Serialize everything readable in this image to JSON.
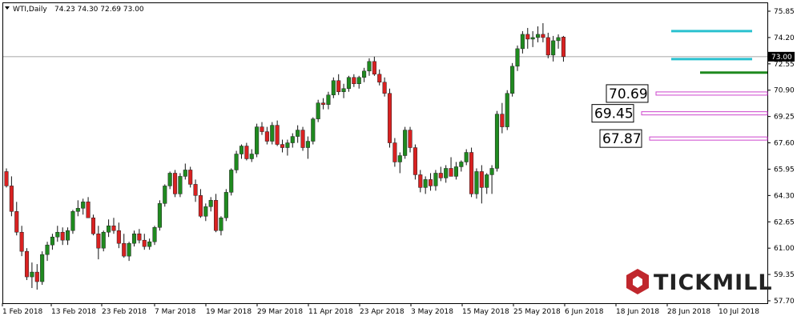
{
  "header": {
    "symbol": "WTI,Daily",
    "ohlc": "74.23 74.30 72.69 73.00",
    "menu_icon": "triangle-down-icon"
  },
  "brand": {
    "name": "TICKMILL",
    "logo_icon": "tickmill-hexagon-logo",
    "color": "#c0272d"
  },
  "colors": {
    "up": "#1f8a1f",
    "down": "#d92121",
    "grid": "#000000",
    "cyan": "#29c1cf",
    "magenta": "#cc44cc",
    "green_level": "#1f8a1f"
  },
  "chart_data": {
    "type": "candlestick",
    "title": "WTI,Daily",
    "ylim": [
      57.7,
      76.2
    ],
    "ytick_labels": [
      "75.85",
      "74.20",
      "72.55",
      "70.90",
      "69.25",
      "67.60",
      "65.95",
      "64.30",
      "62.65",
      "61.00",
      "59.35",
      "57.70"
    ],
    "xtick_labels": [
      "1 Feb 2018",
      "13 Feb 2018",
      "23 Feb 2018",
      "7 Mar 2018",
      "19 Mar 2018",
      "29 Mar 2018",
      "11 Apr 2018",
      "23 Apr 2018",
      "3 May 2018",
      "15 May 2018",
      "25 May 2018",
      "6 Jun 2018",
      "18 Jun 2018",
      "28 Jun 2018",
      "10 Jul 2018"
    ],
    "current_price": "73.00",
    "levels": [
      {
        "label": "70.69",
        "value": 70.69
      },
      {
        "label": "69.45",
        "value": 69.45
      },
      {
        "label": "67.87",
        "value": 67.87
      }
    ],
    "support_level": 72.0,
    "channel": [
      74.6,
      72.85
    ],
    "candles": [
      [
        65.8,
        66.0,
        64.8,
        64.9
      ],
      [
        64.9,
        65.5,
        63.0,
        63.3
      ],
      [
        63.3,
        63.9,
        61.8,
        62.0
      ],
      [
        62.0,
        62.4,
        60.5,
        60.8
      ],
      [
        60.8,
        61.0,
        59.0,
        59.2
      ],
      [
        59.2,
        60.1,
        58.5,
        59.5
      ],
      [
        59.5,
        60.0,
        58.4,
        58.9
      ],
      [
        58.9,
        60.8,
        58.7,
        60.6
      ],
      [
        60.6,
        61.4,
        60.2,
        61.2
      ],
      [
        61.2,
        61.9,
        60.9,
        61.7
      ],
      [
        61.7,
        62.4,
        61.4,
        62.0
      ],
      [
        62.0,
        62.3,
        61.2,
        61.5
      ],
      [
        61.5,
        62.3,
        61.2,
        62.1
      ],
      [
        62.1,
        63.4,
        61.9,
        63.3
      ],
      [
        63.3,
        64.0,
        63.0,
        63.5
      ],
      [
        63.5,
        64.1,
        63.1,
        63.9
      ],
      [
        63.9,
        64.2,
        62.9,
        62.9
      ],
      [
        62.9,
        63.1,
        61.8,
        61.9
      ],
      [
        61.9,
        62.4,
        60.3,
        61.0
      ],
      [
        61.0,
        62.1,
        60.8,
        62.0
      ],
      [
        62.0,
        62.8,
        61.7,
        62.4
      ],
      [
        62.4,
        62.9,
        61.9,
        62.1
      ],
      [
        62.1,
        62.6,
        61.0,
        61.3
      ],
      [
        61.3,
        61.9,
        60.4,
        60.5
      ],
      [
        60.5,
        61.4,
        60.2,
        61.3
      ],
      [
        61.3,
        62.1,
        61.1,
        61.9
      ],
      [
        61.9,
        62.2,
        61.3,
        61.5
      ],
      [
        61.5,
        61.9,
        60.9,
        61.1
      ],
      [
        61.1,
        61.6,
        60.9,
        61.4
      ],
      [
        61.4,
        62.4,
        61.2,
        62.3
      ],
      [
        62.3,
        64.0,
        62.1,
        63.8
      ],
      [
        63.8,
        65.0,
        63.6,
        64.9
      ],
      [
        64.9,
        65.8,
        64.7,
        65.7
      ],
      [
        65.7,
        65.9,
        64.2,
        64.4
      ],
      [
        64.4,
        65.7,
        64.2,
        65.5
      ],
      [
        65.5,
        66.3,
        65.3,
        65.9
      ],
      [
        65.9,
        66.1,
        64.8,
        65.0
      ],
      [
        65.0,
        65.3,
        63.9,
        64.3
      ],
      [
        64.3,
        64.7,
        62.9,
        63.0
      ],
      [
        63.0,
        63.8,
        62.7,
        63.6
      ],
      [
        63.6,
        64.2,
        63.3,
        64.0
      ],
      [
        64.0,
        64.4,
        62.0,
        62.1
      ],
      [
        62.1,
        63.0,
        61.8,
        62.9
      ],
      [
        62.9,
        64.7,
        62.7,
        64.5
      ],
      [
        64.5,
        66.0,
        64.3,
        65.9
      ],
      [
        65.9,
        67.1,
        65.7,
        66.9
      ],
      [
        66.9,
        67.5,
        66.6,
        67.4
      ],
      [
        67.4,
        67.6,
        66.5,
        66.6
      ],
      [
        66.6,
        67.2,
        66.4,
        66.9
      ],
      [
        66.9,
        68.8,
        66.7,
        68.6
      ],
      [
        68.6,
        68.9,
        68.1,
        68.3
      ],
      [
        68.3,
        68.6,
        67.5,
        67.7
      ],
      [
        67.7,
        68.9,
        67.5,
        68.7
      ],
      [
        68.7,
        69.0,
        67.4,
        67.5
      ],
      [
        67.5,
        67.8,
        67.0,
        67.3
      ],
      [
        67.3,
        67.8,
        66.8,
        67.6
      ],
      [
        67.6,
        68.2,
        67.3,
        68.0
      ],
      [
        68.0,
        68.7,
        67.6,
        68.4
      ],
      [
        68.4,
        68.6,
        67.1,
        67.3
      ],
      [
        67.3,
        68.0,
        66.6,
        67.7
      ],
      [
        67.7,
        69.2,
        67.5,
        69.1
      ],
      [
        69.1,
        70.3,
        68.9,
        70.1
      ],
      [
        70.1,
        70.4,
        69.7,
        70.0
      ],
      [
        70.0,
        70.8,
        69.7,
        70.6
      ],
      [
        70.6,
        71.7,
        70.4,
        71.5
      ],
      [
        71.5,
        71.9,
        70.6,
        70.8
      ],
      [
        70.8,
        71.3,
        70.4,
        71.0
      ],
      [
        71.0,
        71.8,
        70.8,
        71.7
      ],
      [
        71.7,
        71.9,
        71.1,
        71.3
      ],
      [
        71.3,
        71.8,
        71.0,
        71.7
      ],
      [
        71.7,
        72.3,
        71.4,
        72.1
      ],
      [
        72.1,
        72.9,
        71.8,
        72.7
      ],
      [
        72.7,
        73.0,
        71.8,
        71.9
      ],
      [
        71.9,
        72.2,
        71.2,
        71.4
      ],
      [
        71.4,
        71.7,
        70.5,
        70.7
      ],
      [
        70.7,
        71.0,
        67.3,
        67.6
      ],
      [
        67.6,
        67.9,
        66.1,
        66.4
      ],
      [
        66.4,
        67.0,
        65.7,
        66.8
      ],
      [
        66.8,
        68.6,
        66.6,
        68.4
      ],
      [
        68.4,
        68.6,
        67.0,
        67.3
      ],
      [
        67.3,
        67.5,
        65.3,
        65.6
      ],
      [
        65.6,
        65.9,
        64.5,
        64.8
      ],
      [
        64.8,
        65.5,
        64.4,
        65.3
      ],
      [
        65.3,
        65.7,
        64.6,
        64.9
      ],
      [
        64.9,
        65.9,
        64.6,
        65.7
      ],
      [
        65.7,
        66.1,
        65.2,
        65.4
      ],
      [
        65.4,
        66.2,
        65.1,
        66.0
      ],
      [
        66.0,
        66.7,
        65.6,
        65.5
      ],
      [
        65.5,
        66.4,
        65.3,
        66.1
      ],
      [
        66.1,
        66.5,
        65.8,
        66.4
      ],
      [
        66.4,
        67.2,
        66.2,
        67.0
      ],
      [
        67.0,
        67.3,
        64.2,
        64.4
      ],
      [
        64.4,
        66.0,
        64.1,
        65.8
      ],
      [
        65.8,
        66.2,
        63.8,
        64.8
      ],
      [
        64.8,
        65.7,
        64.4,
        65.6
      ],
      [
        65.6,
        66.2,
        64.4,
        66.0
      ],
      [
        66.0,
        69.6,
        65.8,
        69.4
      ],
      [
        69.4,
        70.1,
        68.2,
        68.6
      ],
      [
        68.6,
        70.9,
        68.4,
        70.7
      ],
      [
        70.7,
        72.6,
        70.5,
        72.4
      ],
      [
        72.4,
        73.7,
        72.1,
        73.5
      ],
      [
        73.5,
        74.6,
        73.2,
        74.4
      ],
      [
        74.4,
        74.8,
        73.5,
        74.1
      ],
      [
        74.1,
        74.6,
        73.6,
        74.2
      ],
      [
        74.2,
        74.9,
        73.9,
        74.4
      ],
      [
        74.4,
        75.1,
        73.9,
        74.2
      ],
      [
        74.2,
        74.5,
        72.9,
        73.1
      ],
      [
        73.1,
        74.3,
        72.7,
        74.0
      ],
      [
        74.0,
        74.4,
        73.5,
        74.2
      ],
      [
        74.23,
        74.3,
        72.69,
        73.0
      ]
    ]
  }
}
